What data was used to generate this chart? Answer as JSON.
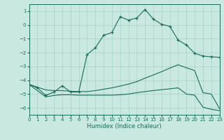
{
  "xlabel": "Humidex (Indice chaleur)",
  "bg_color": "#c8e8e0",
  "line_color": "#1a6b5a",
  "grid_color": "#a8d0c8",
  "xlim": [
    0,
    23
  ],
  "ylim": [
    -6.5,
    1.5
  ],
  "yticks": [
    1,
    0,
    -1,
    -2,
    -3,
    -4,
    -5,
    -6
  ],
  "xticks": [
    0,
    1,
    2,
    3,
    4,
    5,
    6,
    7,
    8,
    9,
    10,
    11,
    12,
    13,
    14,
    15,
    16,
    17,
    18,
    19,
    20,
    21,
    22,
    23
  ],
  "line_marker_x": [
    0,
    1,
    2,
    3,
    4,
    5,
    6,
    7,
    8,
    9,
    10,
    11,
    12,
    13,
    14,
    15,
    16,
    17,
    18,
    19,
    20,
    21,
    22,
    23
  ],
  "line_marker_y": [
    -4.3,
    -4.55,
    -5.1,
    -4.85,
    -4.4,
    -4.85,
    -4.85,
    -2.15,
    -1.65,
    -0.75,
    -0.55,
    0.6,
    0.35,
    0.5,
    1.12,
    0.42,
    0.05,
    -0.1,
    -1.1,
    -1.45,
    -2.05,
    -2.25,
    -2.3,
    -2.35
  ],
  "line_smooth1_x": [
    0,
    1,
    2,
    3,
    4,
    5,
    6,
    7,
    8,
    9,
    10,
    11,
    12,
    13,
    14,
    15,
    16,
    17,
    18,
    19,
    20,
    21,
    22,
    23
  ],
  "line_smooth1_y": [
    -4.3,
    -4.5,
    -4.7,
    -4.75,
    -4.75,
    -4.8,
    -4.82,
    -4.82,
    -4.75,
    -4.65,
    -4.55,
    -4.42,
    -4.28,
    -4.1,
    -3.85,
    -3.62,
    -3.38,
    -3.12,
    -2.88,
    -3.1,
    -3.3,
    -4.9,
    -5.0,
    -6.05
  ],
  "line_smooth2_x": [
    0,
    1,
    2,
    3,
    4,
    5,
    6,
    7,
    8,
    9,
    10,
    11,
    12,
    13,
    14,
    15,
    16,
    17,
    18,
    19,
    20,
    21,
    22,
    23
  ],
  "line_smooth2_y": [
    -4.3,
    -4.75,
    -5.2,
    -5.1,
    -5.05,
    -5.05,
    -5.08,
    -5.08,
    -5.08,
    -5.08,
    -5.08,
    -5.05,
    -5.0,
    -4.9,
    -4.82,
    -4.75,
    -4.68,
    -4.62,
    -4.55,
    -5.0,
    -5.08,
    -5.95,
    -6.1,
    -6.2
  ]
}
